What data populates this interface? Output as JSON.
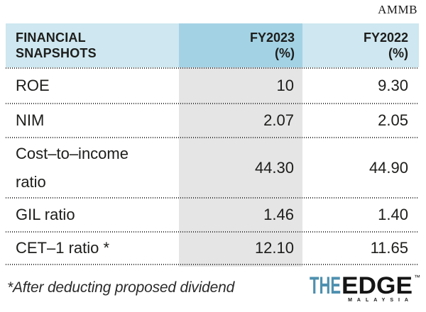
{
  "source_label": "AMMB",
  "table": {
    "header": {
      "col0_line1": "FINANCIAL",
      "col0_line2": "SNAPSHOTS",
      "col1_line1": "FY2023",
      "col1_line2": "(%)",
      "col2_line1": "FY2022",
      "col2_line2": "(%)"
    },
    "rows": [
      {
        "label": "ROE",
        "fy2023": "10",
        "fy2022": "9.30"
      },
      {
        "label": "NIM",
        "fy2023": "2.07",
        "fy2022": "2.05"
      },
      {
        "label": "Cost–to–income ratio",
        "fy2023": "44.30",
        "fy2022": "44.90"
      },
      {
        "label": "GIL ratio",
        "fy2023": "1.46",
        "fy2022": "1.40"
      },
      {
        "label": "CET–1 ratio *",
        "fy2023": "12.10",
        "fy2022": "11.65"
      }
    ]
  },
  "footnote": "*After deducting proposed dividend",
  "logo": {
    "the": "THE",
    "edge": "EDGE",
    "tm": "™",
    "malaysia": "MALAYSIA"
  },
  "colors": {
    "header_bg": "#cee7f0",
    "header_highlight_bg": "#a3d2e4",
    "column_bg": "#e5e5e6",
    "text": "#1d1d1b",
    "logo_blue": "#4e90af",
    "logo_black": "#151515"
  },
  "chart_data": {
    "type": "table",
    "title": "FINANCIAL SNAPSHOTS",
    "source": "AMMB",
    "columns": [
      "FINANCIAL SNAPSHOTS",
      "FY2023 (%)",
      "FY2022 (%)"
    ],
    "rows": [
      {
        "label": "ROE",
        "fy2023": 10,
        "fy2022": 9.3
      },
      {
        "label": "NIM",
        "fy2023": 2.07,
        "fy2022": 2.05
      },
      {
        "label": "Cost-to-income ratio",
        "fy2023": 44.3,
        "fy2022": 44.9
      },
      {
        "label": "GIL ratio",
        "fy2023": 1.46,
        "fy2022": 1.4
      },
      {
        "label": "CET-1 ratio (after deducting proposed dividend)",
        "fy2023": 12.1,
        "fy2022": 11.65
      }
    ],
    "footnote": "*After deducting proposed dividend",
    "layout": {
      "highlight_column": "FY2023 (%)",
      "grid": "dotted-horizontal"
    }
  }
}
